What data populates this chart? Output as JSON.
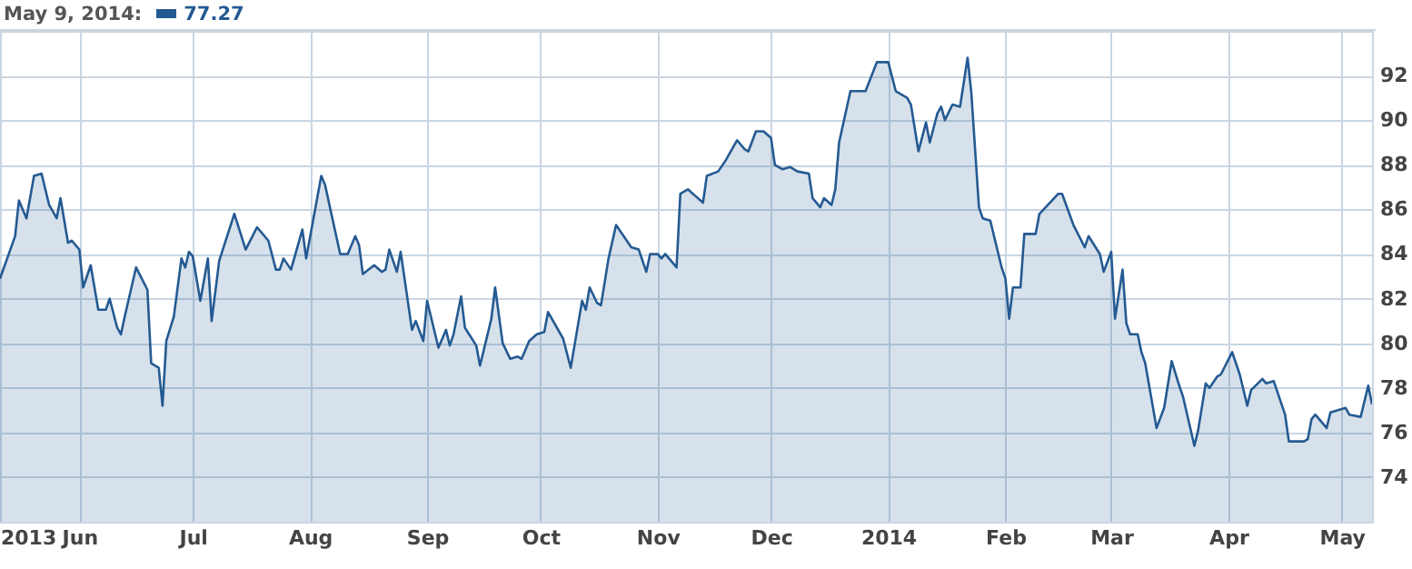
{
  "chart_data": {
    "type": "area",
    "title": "May 9, 2014:",
    "annotations": [
      "77.27"
    ],
    "x": [
      "2013-05-11",
      "2013-05-15",
      "2013-05-16",
      "2013-05-18",
      "2013-05-20",
      "2013-05-22",
      "2013-05-24",
      "2013-05-26",
      "2013-05-27",
      "2013-05-29",
      "2013-05-30",
      "2013-06-01",
      "2013-06-02",
      "2013-06-04",
      "2013-06-06",
      "2013-06-08",
      "2013-06-09",
      "2013-06-11",
      "2013-06-12",
      "2013-06-13",
      "2013-06-16",
      "2013-06-19",
      "2013-06-20",
      "2013-06-22",
      "2013-06-23",
      "2013-06-24",
      "2013-06-26",
      "2013-06-28",
      "2013-06-29",
      "2013-06-30",
      "2013-07-01",
      "2013-07-03",
      "2013-07-05",
      "2013-07-06",
      "2013-07-08",
      "2013-07-12",
      "2013-07-15",
      "2013-07-18",
      "2013-07-21",
      "2013-07-23",
      "2013-07-24",
      "2013-07-25",
      "2013-07-27",
      "2013-07-30",
      "2013-07-31",
      "2013-08-04",
      "2013-08-05",
      "2013-08-09",
      "2013-08-11",
      "2013-08-13",
      "2013-08-14",
      "2013-08-15",
      "2013-08-18",
      "2013-08-20",
      "2013-08-21",
      "2013-08-22",
      "2013-08-24",
      "2013-08-25",
      "2013-08-28",
      "2013-08-29",
      "2013-08-31",
      "2013-09-01",
      "2013-09-04",
      "2013-09-06",
      "2013-09-07",
      "2013-09-08",
      "2013-09-10",
      "2013-09-11",
      "2013-09-14",
      "2013-09-15",
      "2013-09-18",
      "2013-09-19",
      "2013-09-21",
      "2013-09-23",
      "2013-09-25",
      "2013-09-26",
      "2013-09-28",
      "2013-09-30",
      "2013-10-02",
      "2013-10-03",
      "2013-10-05",
      "2013-10-07",
      "2013-10-09",
      "2013-10-12",
      "2013-10-13",
      "2013-10-14",
      "2013-10-16",
      "2013-10-17",
      "2013-10-19",
      "2013-10-21",
      "2013-10-25",
      "2013-10-27",
      "2013-10-29",
      "2013-10-30",
      "2013-11-01",
      "2013-11-02",
      "2013-11-03",
      "2013-11-06",
      "2013-11-07",
      "2013-11-09",
      "2013-11-11",
      "2013-11-13",
      "2013-11-14",
      "2013-11-17",
      "2013-11-19",
      "2013-11-22",
      "2013-11-24",
      "2013-11-25",
      "2013-11-27",
      "2013-11-29",
      "2013-12-01",
      "2013-12-02",
      "2013-12-04",
      "2013-12-06",
      "2013-12-08",
      "2013-12-11",
      "2013-12-12",
      "2013-12-14",
      "2013-12-15",
      "2013-12-17",
      "2013-12-18",
      "2013-12-19",
      "2013-12-22",
      "2013-12-26",
      "2013-12-29",
      "2014-01-01",
      "2014-01-03",
      "2014-01-06",
      "2014-01-07",
      "2014-01-09",
      "2014-01-11",
      "2014-01-12",
      "2014-01-14",
      "2014-01-15",
      "2014-01-16",
      "2014-01-18",
      "2014-01-20",
      "2014-01-22",
      "2014-01-23",
      "2014-01-25",
      "2014-01-26",
      "2014-01-28",
      "2014-01-31",
      "2014-02-01",
      "2014-02-02",
      "2014-02-03",
      "2014-02-05",
      "2014-02-06",
      "2014-02-09",
      "2014-02-10",
      "2014-02-15",
      "2014-02-16",
      "2014-02-19",
      "2014-02-22",
      "2014-02-23",
      "2014-02-26",
      "2014-02-27",
      "2014-03-01",
      "2014-03-02",
      "2014-03-04",
      "2014-03-05",
      "2014-03-06",
      "2014-03-08",
      "2014-03-09",
      "2014-03-10",
      "2014-03-13",
      "2014-03-15",
      "2014-03-17",
      "2014-03-19",
      "2014-03-20",
      "2014-03-23",
      "2014-03-24",
      "2014-03-26",
      "2014-03-27",
      "2014-03-29",
      "2014-03-30",
      "2014-04-02",
      "2014-04-04",
      "2014-04-06",
      "2014-04-07",
      "2014-04-10",
      "2014-04-11",
      "2014-04-13",
      "2014-04-16",
      "2014-04-17",
      "2014-04-21",
      "2014-04-22",
      "2014-04-23",
      "2014-04-24",
      "2014-04-27",
      "2014-04-28",
      "2014-05-02",
      "2014-05-03",
      "2014-05-06",
      "2014-05-08",
      "2014-05-09"
    ],
    "series": [
      {
        "color": "#245a92",
        "values": [
          82.9,
          84.8,
          86.4,
          85.6,
          87.5,
          87.6,
          86.2,
          85.6,
          86.5,
          84.5,
          84.6,
          84.2,
          82.5,
          83.5,
          81.5,
          81.5,
          82.0,
          80.7,
          80.4,
          81.2,
          83.4,
          82.4,
          79.1,
          78.9,
          77.2,
          80.1,
          81.2,
          83.8,
          83.4,
          84.1,
          83.9,
          81.9,
          83.8,
          81.0,
          83.7,
          85.8,
          84.2,
          85.2,
          84.6,
          83.3,
          83.3,
          83.8,
          83.3,
          85.1,
          83.8,
          87.5,
          87.1,
          84.0,
          84.0,
          84.8,
          84.4,
          83.1,
          83.5,
          83.2,
          83.3,
          84.2,
          83.2,
          84.1,
          80.6,
          81.0,
          80.1,
          81.9,
          79.8,
          80.6,
          79.9,
          80.4,
          82.1,
          80.7,
          79.9,
          79.0,
          81.1,
          82.5,
          80.0,
          79.3,
          79.4,
          79.3,
          80.1,
          80.4,
          80.5,
          81.4,
          80.8,
          80.2,
          78.9,
          81.9,
          81.5,
          82.5,
          81.8,
          81.7,
          83.8,
          85.3,
          84.3,
          84.2,
          83.2,
          84.0,
          84.0,
          83.8,
          84.0,
          83.4,
          86.7,
          86.9,
          86.6,
          86.3,
          87.5,
          87.7,
          88.2,
          89.1,
          88.7,
          88.6,
          89.5,
          89.5,
          89.2,
          88.0,
          87.8,
          87.9,
          87.7,
          87.6,
          86.5,
          86.1,
          86.5,
          86.2,
          86.9,
          89.0,
          91.3,
          91.3,
          92.6,
          92.6,
          91.3,
          91.0,
          90.7,
          88.6,
          89.9,
          89.0,
          90.3,
          90.6,
          90.0,
          90.7,
          90.6,
          92.8,
          91.2,
          86.1,
          85.6,
          85.5,
          83.4,
          82.9,
          81.1,
          82.5,
          82.5,
          84.9,
          84.9,
          85.8,
          86.7,
          86.7,
          85.3,
          84.3,
          84.8,
          84.0,
          83.2,
          84.1,
          81.1,
          83.3,
          80.9,
          80.4,
          80.4,
          79.6,
          79.1,
          76.2,
          77.1,
          79.2,
          78.1,
          77.6,
          75.4,
          76.1,
          78.2,
          78.0,
          78.5,
          78.6,
          79.6,
          78.6,
          77.2,
          77.9,
          78.4,
          78.2,
          78.3,
          76.8,
          75.6,
          75.6,
          75.7,
          76.6,
          76.8,
          76.2,
          76.9,
          77.1,
          76.8,
          76.7,
          78.1,
          77.27
        ]
      }
    ],
    "xlim": [
      "2013-05-11",
      "2014-05-09"
    ],
    "xticks": [
      {
        "value": "2013-05-11",
        "label": "2013"
      },
      {
        "value": "2013-06-01",
        "label": "Jun"
      },
      {
        "value": "2013-07-01",
        "label": "Jul"
      },
      {
        "value": "2013-08-01",
        "label": "Aug"
      },
      {
        "value": "2013-09-01",
        "label": "Sep"
      },
      {
        "value": "2013-10-01",
        "label": "Oct"
      },
      {
        "value": "2013-11-01",
        "label": "Nov"
      },
      {
        "value": "2013-12-01",
        "label": "Dec"
      },
      {
        "value": "2014-01-01",
        "label": "2014"
      },
      {
        "value": "2014-02-01",
        "label": "Feb"
      },
      {
        "value": "2014-03-01",
        "label": "Mar"
      },
      {
        "value": "2014-04-01",
        "label": "Apr"
      },
      {
        "value": "2014-05-01",
        "label": "May"
      }
    ],
    "ylim": [
      72,
      94
    ],
    "yticks": [
      74,
      76,
      78,
      80,
      82,
      84,
      86,
      88,
      90,
      92
    ],
    "grid": true,
    "marker": "none",
    "line_style": "solid"
  }
}
